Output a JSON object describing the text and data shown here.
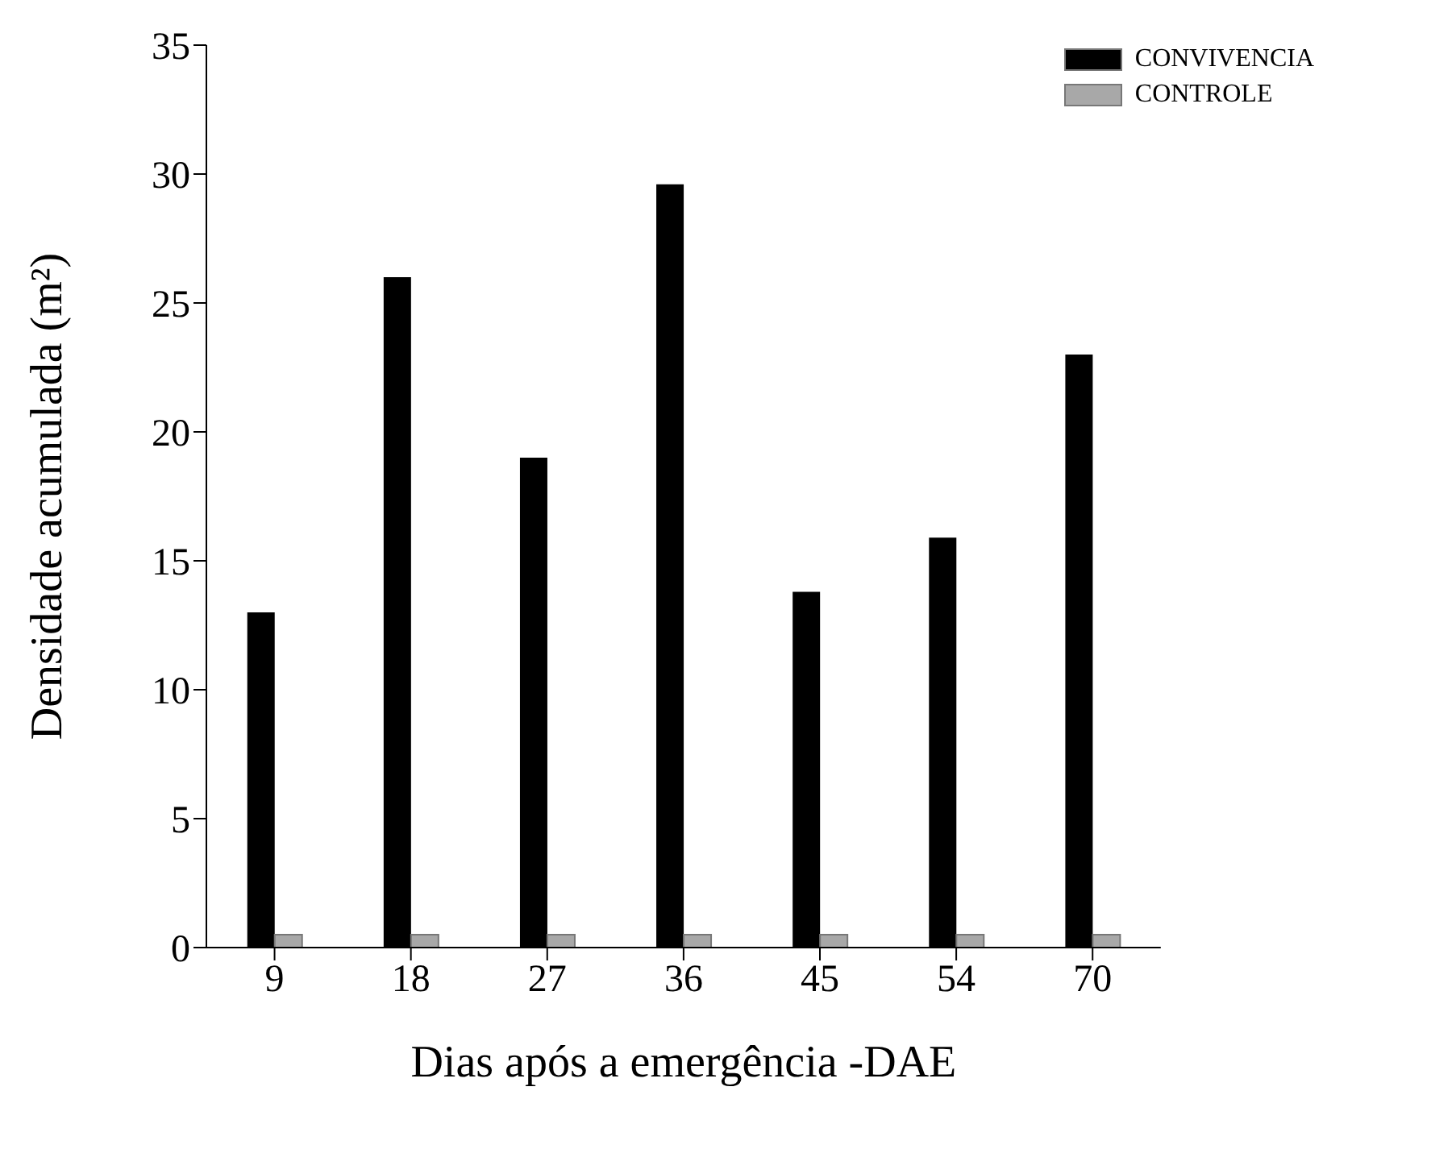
{
  "chart_data": {
    "type": "bar",
    "xlabel": "Dias após a emergência -DAE",
    "ylabel": "Densidade acumulada (m²)",
    "categories": [
      "9",
      "18",
      "27",
      "36",
      "45",
      "54",
      "70"
    ],
    "series": [
      {
        "name": "CONVIVENCIA",
        "color": "#000000",
        "values": [
          13,
          26,
          19,
          29.6,
          13.8,
          15.9,
          23
        ]
      },
      {
        "name": "CONTROLE",
        "color": "#a8a8a8",
        "values": [
          0.5,
          0.5,
          0.5,
          0.5,
          0.5,
          0.5,
          0.5
        ]
      }
    ],
    "ylim": [
      0,
      35
    ],
    "yticks": [
      0,
      5,
      10,
      15,
      20,
      25,
      30,
      35
    ],
    "grid": false,
    "legend": "top right"
  }
}
